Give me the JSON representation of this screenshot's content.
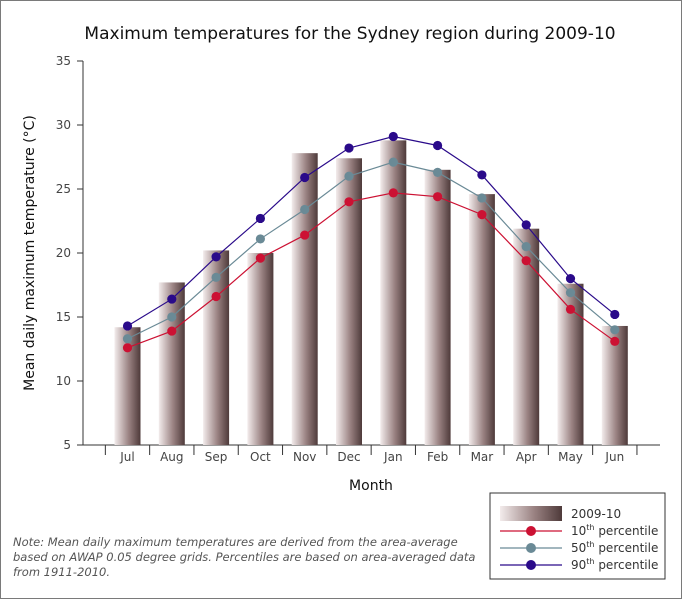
{
  "chart_data": {
    "type": "bar",
    "title": "Maximum temperatures for the Sydney region during 2009-10",
    "xlabel": "Month",
    "ylabel": "Mean daily maximum temperature (°C)",
    "categories": [
      "Jul",
      "Aug",
      "Sep",
      "Oct",
      "Nov",
      "Dec",
      "Jan",
      "Feb",
      "Mar",
      "Apr",
      "May",
      "Jun"
    ],
    "ylim": [
      5,
      35
    ],
    "yticks": [
      5,
      10,
      15,
      20,
      25,
      30,
      35
    ],
    "grid": false,
    "legend_position": "bottom-right",
    "series": [
      {
        "name": "2009-10",
        "type": "bar",
        "color": "#8b7474",
        "values": [
          14.2,
          17.7,
          20.2,
          20.0,
          27.8,
          27.4,
          28.8,
          26.5,
          24.6,
          21.9,
          17.6,
          14.3
        ]
      },
      {
        "name": "10th percentile",
        "name_prefix": "10",
        "name_sup": "th",
        "name_suffix": " percentile",
        "type": "line",
        "color": "#cc1133",
        "values": [
          12.6,
          13.9,
          16.6,
          19.6,
          21.4,
          24.0,
          24.7,
          24.4,
          23.0,
          19.4,
          15.6,
          13.1
        ]
      },
      {
        "name": "50th percentile",
        "name_prefix": "50",
        "name_sup": "th",
        "name_suffix": " percentile",
        "type": "line",
        "color": "#6a8a96",
        "values": [
          13.3,
          15.0,
          18.1,
          21.1,
          23.4,
          26.0,
          27.1,
          26.3,
          24.3,
          20.5,
          16.9,
          14.0
        ]
      },
      {
        "name": "90th percentile",
        "name_prefix": "90",
        "name_sup": "th",
        "name_suffix": " percentile",
        "type": "line",
        "color": "#2a0a8a",
        "values": [
          14.3,
          16.4,
          19.7,
          22.7,
          25.9,
          28.2,
          29.1,
          28.4,
          26.1,
          22.2,
          18.0,
          15.2
        ]
      }
    ]
  },
  "note": "Note: Mean daily maximum temperatures are derived from the area-average based on AWAP 0.05 degree grids. Percentiles are based on area-averaged data from 1911-2010."
}
